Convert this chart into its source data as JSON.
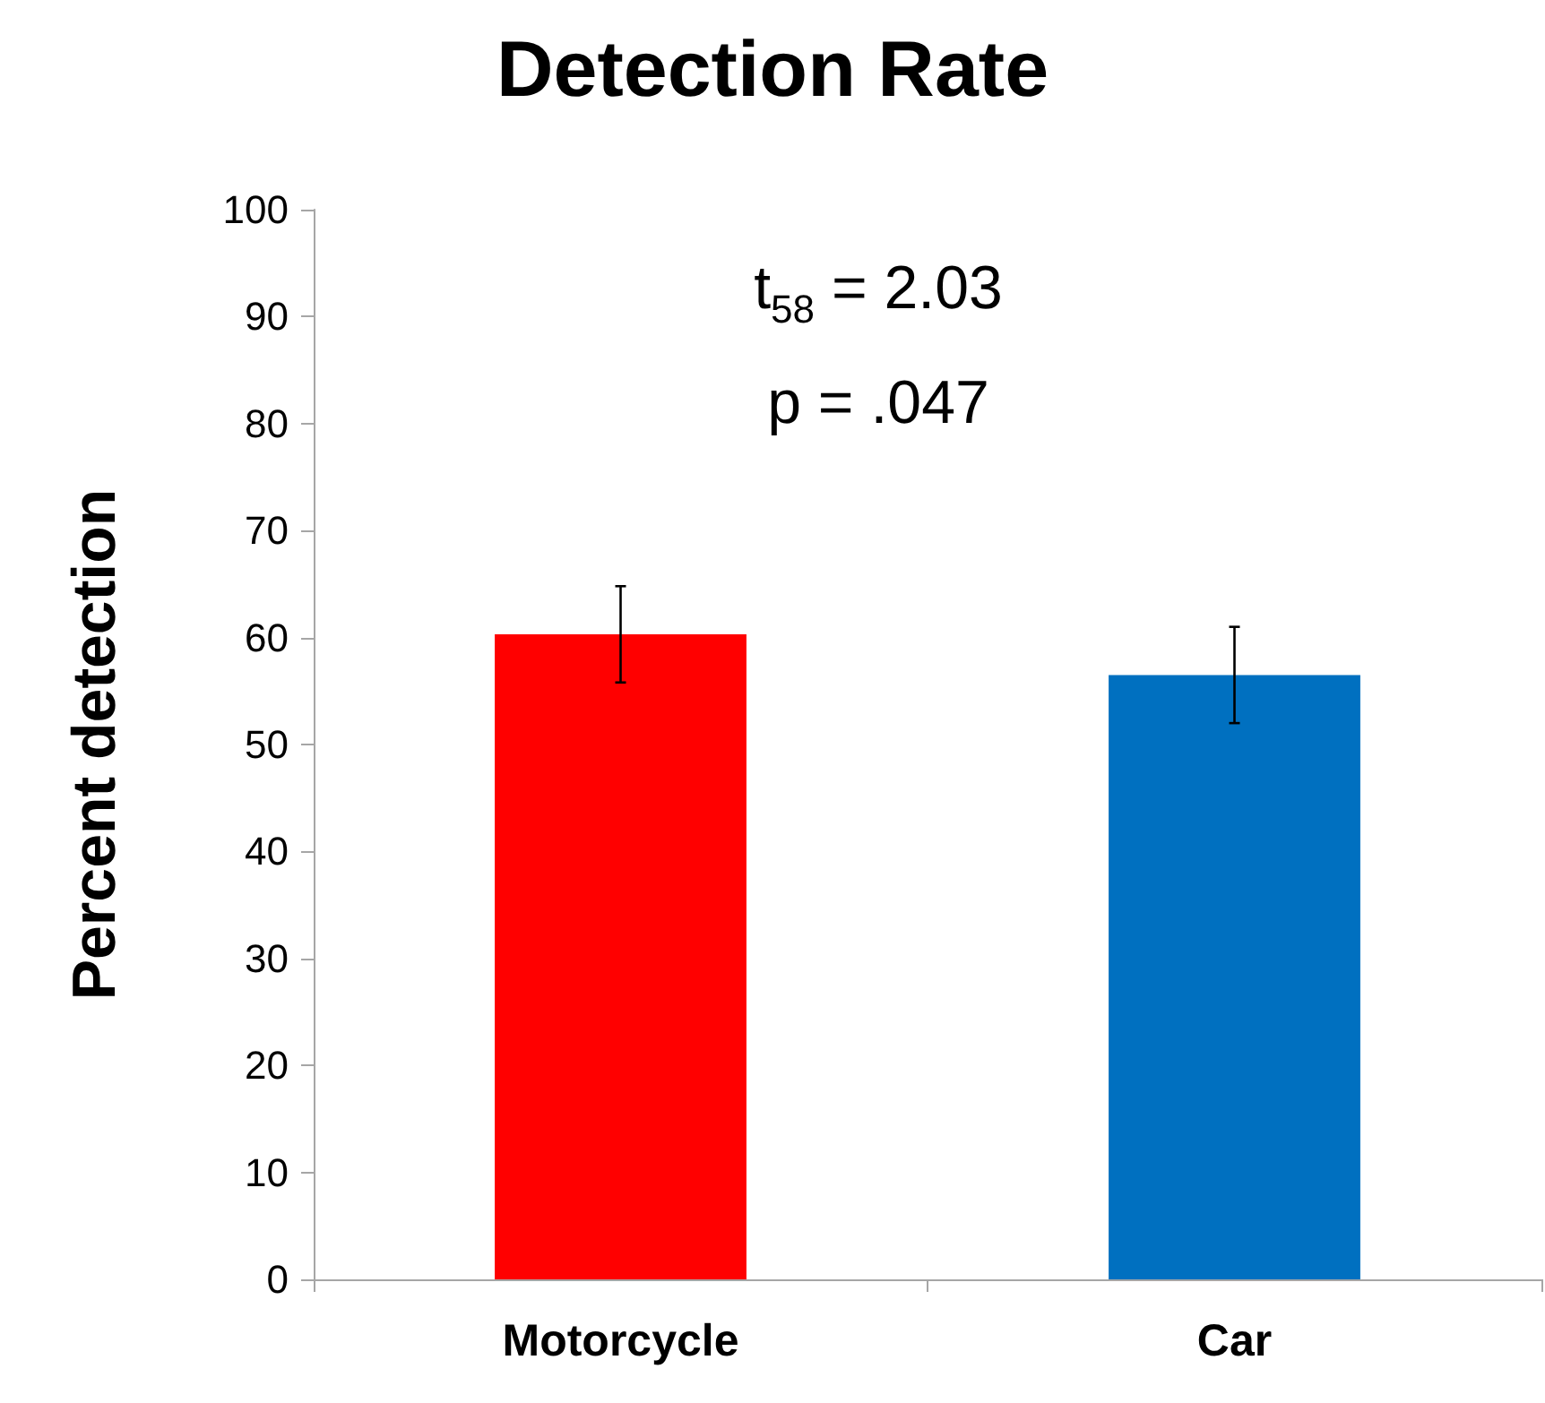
{
  "chart_data": {
    "type": "bar",
    "title": "Detection Rate",
    "ylabel": "Percent detection",
    "categories": [
      "Motorcycle",
      "Car"
    ],
    "values": [
      60.3,
      56.5
    ],
    "colors": [
      "#ff0000",
      "#0070c0"
    ],
    "errors": [
      4.5,
      4.5
    ],
    "ylim": [
      0,
      100
    ],
    "yticks": [
      0,
      10,
      20,
      30,
      40,
      50,
      60,
      70,
      80,
      90,
      100
    ],
    "annotations": [
      "t$_{58}$ = 2.03",
      "p = .047"
    ]
  }
}
